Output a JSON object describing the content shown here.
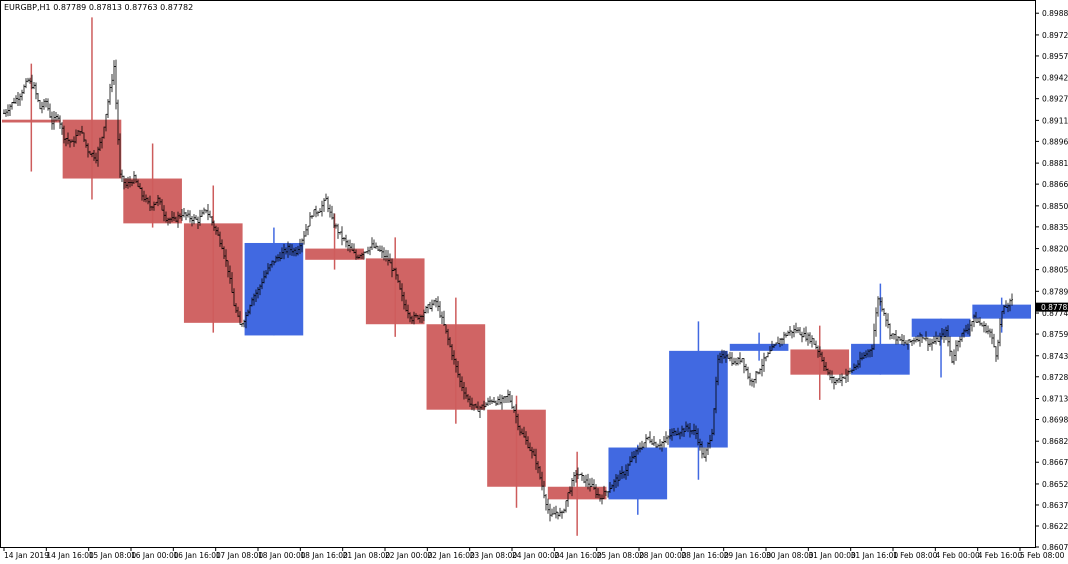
{
  "chart_data": {
    "type": "candlestick-ohlc",
    "symbol": "EURGBP,H1",
    "ohlc_header": [
      "0.87789",
      "0.87813",
      "0.87763",
      "0.87782"
    ],
    "current_price": "0.87782",
    "ylim": [
      0.8607,
      0.8996
    ],
    "y_ticks": [
      "0.89880",
      "0.89725",
      "0.89575",
      "0.89420",
      "0.89270",
      "0.89115",
      "0.88965",
      "0.88810",
      "0.88660",
      "0.88505",
      "0.88355",
      "0.88200",
      "0.88050",
      "0.87895",
      "0.87740",
      "0.87590",
      "0.87435",
      "0.87285",
      "0.87130",
      "0.86980",
      "0.86825",
      "0.86675",
      "0.86520",
      "0.86370",
      "0.86220",
      "0.86070"
    ],
    "x_ticks": [
      "14 Jan 2019",
      "14 Jan 16:00",
      "15 Jan 08:00",
      "16 Jan 00:00",
      "16 Jan 16:00",
      "17 Jan 08:00",
      "18 Jan 00:00",
      "18 Jan 16:00",
      "21 Jan 08:00",
      "22 Jan 00:00",
      "22 Jan 16:00",
      "23 Jan 08:00",
      "24 Jan 00:00",
      "24 Jan 16:00",
      "25 Jan 08:00",
      "28 Jan 00:00",
      "28 Jan 16:00",
      "29 Jan 16:00",
      "30 Jan 08:00",
      "31 Jan 00:00",
      "31 Jan 16:00",
      "1 Feb 08:00",
      "4 Feb 00:00",
      "4 Feb 16:00",
      "5 Feb 08:00"
    ],
    "daily_boxes": [
      {
        "open": 0.8912,
        "high": 0.8952,
        "low": 0.8875,
        "close": 0.891
      },
      {
        "open": 0.8912,
        "high": 0.8985,
        "low": 0.8855,
        "close": 0.887
      },
      {
        "open": 0.887,
        "high": 0.8895,
        "low": 0.8835,
        "close": 0.8838
      },
      {
        "open": 0.8838,
        "high": 0.8865,
        "low": 0.876,
        "close": 0.8767
      },
      {
        "open": 0.8758,
        "high": 0.8835,
        "low": 0.8758,
        "close": 0.8824
      },
      {
        "open": 0.882,
        "high": 0.8845,
        "low": 0.8805,
        "close": 0.8812
      },
      {
        "open": 0.8813,
        "high": 0.8828,
        "low": 0.8757,
        "close": 0.8766
      },
      {
        "open": 0.8766,
        "high": 0.8785,
        "low": 0.8695,
        "close": 0.8705
      },
      {
        "open": 0.8705,
        "high": 0.8715,
        "low": 0.8635,
        "close": 0.865
      },
      {
        "open": 0.865,
        "high": 0.8675,
        "low": 0.8615,
        "close": 0.8641
      },
      {
        "open": 0.8641,
        "high": 0.868,
        "low": 0.863,
        "close": 0.8678
      },
      {
        "open": 0.8678,
        "high": 0.8768,
        "low": 0.8655,
        "close": 0.8747
      },
      {
        "open": 0.8747,
        "high": 0.876,
        "low": 0.874,
        "close": 0.8752
      },
      {
        "open": 0.8748,
        "high": 0.8765,
        "low": 0.8712,
        "close": 0.873
      },
      {
        "open": 0.873,
        "high": 0.8795,
        "low": 0.873,
        "close": 0.8752
      },
      {
        "open": 0.8757,
        "high": 0.877,
        "low": 0.8728,
        "close": 0.877
      },
      {
        "open": 0.877,
        "high": 0.8785,
        "low": 0.876,
        "close": 0.878
      }
    ],
    "hourly_path": [
      [
        0,
        0.8913
      ],
      [
        10,
        0.8922
      ],
      [
        20,
        0.893
      ],
      [
        28,
        0.894
      ],
      [
        34,
        0.8935
      ],
      [
        40,
        0.892
      ],
      [
        46,
        0.8925
      ],
      [
        52,
        0.891
      ],
      [
        58,
        0.8915
      ],
      [
        64,
        0.89
      ],
      [
        72,
        0.8895
      ],
      [
        80,
        0.8905
      ],
      [
        88,
        0.889
      ],
      [
        96,
        0.8885
      ],
      [
        102,
        0.89
      ],
      [
        108,
        0.8925
      ],
      [
        114,
        0.895
      ],
      [
        120,
        0.8872
      ],
      [
        126,
        0.8865
      ],
      [
        134,
        0.887
      ],
      [
        142,
        0.8858
      ],
      [
        150,
        0.885
      ],
      [
        158,
        0.8855
      ],
      [
        166,
        0.8842
      ],
      [
        174,
        0.884
      ],
      [
        182,
        0.8845
      ],
      [
        190,
        0.8842
      ],
      [
        198,
        0.884
      ],
      [
        206,
        0.8848
      ],
      [
        214,
        0.8836
      ],
      [
        222,
        0.8822
      ],
      [
        228,
        0.8805
      ],
      [
        234,
        0.878
      ],
      [
        240,
        0.8765
      ],
      [
        246,
        0.8772
      ],
      [
        252,
        0.8785
      ],
      [
        258,
        0.879
      ],
      [
        264,
        0.88
      ],
      [
        272,
        0.881
      ],
      [
        280,
        0.8815
      ],
      [
        288,
        0.882
      ],
      [
        296,
        0.8818
      ],
      [
        304,
        0.883
      ],
      [
        312,
        0.8845
      ],
      [
        320,
        0.8848
      ],
      [
        326,
        0.8855
      ],
      [
        332,
        0.884
      ],
      [
        340,
        0.883
      ],
      [
        348,
        0.8822
      ],
      [
        356,
        0.8814
      ],
      [
        364,
        0.8818
      ],
      [
        372,
        0.8822
      ],
      [
        380,
        0.8818
      ],
      [
        388,
        0.8812
      ],
      [
        396,
        0.88
      ],
      [
        404,
        0.878
      ],
      [
        412,
        0.877
      ],
      [
        420,
        0.8772
      ],
      [
        428,
        0.8778
      ],
      [
        436,
        0.8782
      ],
      [
        444,
        0.8765
      ],
      [
        452,
        0.8745
      ],
      [
        460,
        0.8725
      ],
      [
        468,
        0.8712
      ],
      [
        476,
        0.8705
      ],
      [
        484,
        0.8708
      ],
      [
        492,
        0.8712
      ],
      [
        500,
        0.871
      ],
      [
        508,
        0.8715
      ],
      [
        514,
        0.8705
      ],
      [
        520,
        0.869
      ],
      [
        528,
        0.868
      ],
      [
        536,
        0.8668
      ],
      [
        544,
        0.8645
      ],
      [
        550,
        0.8628
      ],
      [
        556,
        0.8632
      ],
      [
        562,
        0.863
      ],
      [
        568,
        0.8645
      ],
      [
        576,
        0.866
      ],
      [
        584,
        0.8655
      ],
      [
        592,
        0.865
      ],
      [
        600,
        0.8642
      ],
      [
        608,
        0.8648
      ],
      [
        616,
        0.8655
      ],
      [
        624,
        0.866
      ],
      [
        632,
        0.867
      ],
      [
        640,
        0.8678
      ],
      [
        648,
        0.8685
      ],
      [
        656,
        0.868
      ],
      [
        664,
        0.8682
      ],
      [
        672,
        0.8688
      ],
      [
        680,
        0.869
      ],
      [
        688,
        0.8692
      ],
      [
        696,
        0.8688
      ],
      [
        704,
        0.867
      ],
      [
        712,
        0.869
      ],
      [
        718,
        0.874
      ],
      [
        726,
        0.8745
      ],
      [
        734,
        0.8738
      ],
      [
        742,
        0.8742
      ],
      [
        750,
        0.8725
      ],
      [
        756,
        0.873
      ],
      [
        764,
        0.874
      ],
      [
        772,
        0.8748
      ],
      [
        780,
        0.8755
      ],
      [
        788,
        0.876
      ],
      [
        796,
        0.8762
      ],
      [
        804,
        0.8758
      ],
      [
        812,
        0.8755
      ],
      [
        820,
        0.8745
      ],
      [
        828,
        0.873
      ],
      [
        834,
        0.8725
      ],
      [
        842,
        0.8728
      ],
      [
        850,
        0.8732
      ],
      [
        858,
        0.8738
      ],
      [
        866,
        0.8745
      ],
      [
        872,
        0.875
      ],
      [
        878,
        0.8785
      ],
      [
        884,
        0.8775
      ],
      [
        890,
        0.876
      ],
      [
        898,
        0.8755
      ],
      [
        906,
        0.8752
      ],
      [
        914,
        0.8755
      ],
      [
        922,
        0.8758
      ],
      [
        930,
        0.8752
      ],
      [
        938,
        0.8755
      ],
      [
        946,
        0.876
      ],
      [
        952,
        0.874
      ],
      [
        958,
        0.8755
      ],
      [
        966,
        0.8762
      ],
      [
        974,
        0.877
      ],
      [
        982,
        0.8765
      ],
      [
        990,
        0.876
      ],
      [
        996,
        0.8745
      ],
      [
        1002,
        0.8775
      ],
      [
        1008,
        0.878
      ],
      [
        1012,
        0.8782
      ]
    ],
    "colors": {
      "bull": "#4169e1",
      "bear": "#cd5c5c",
      "bar": "#000000",
      "current_bg": "#000000"
    }
  }
}
